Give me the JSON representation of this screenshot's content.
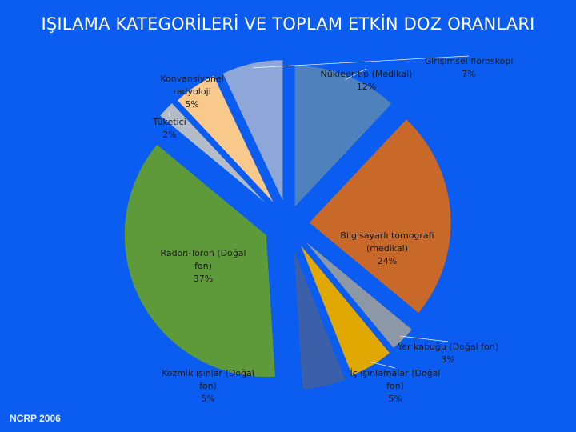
{
  "page": {
    "title": "IŞILAMA KATEGORİLERİ VE TOPLAM ETKİN DOZ ORANLARI",
    "source": "NCRP 2006"
  },
  "chart_data": {
    "type": "pie",
    "title": "IŞILAMA KATEGORİLERİ VE TOPLAM ETKİN DOZ ORANLARI",
    "slices": [
      {
        "label": "Nükleer tıp (Medikal)",
        "value": 12,
        "display": "12%",
        "color": "#4f81bd"
      },
      {
        "label": "Bilgisayarlı tomografi (medikal)",
        "value": 24,
        "display": "24%",
        "color": "#c8692a"
      },
      {
        "label": "Yer kabuğu (Doğal fon)",
        "value": 3,
        "display": "3%",
        "color": "#8c98a6"
      },
      {
        "label": "İç ışınlamalar (Doğal fon)",
        "value": 5,
        "display": "5%",
        "color": "#e0a800"
      },
      {
        "label": "Kozmik ışınlar (Doğal fon)",
        "value": 5,
        "display": "5%",
        "color": "#3b5fa8"
      },
      {
        "label": "Radon-Toron (Doğal fon)",
        "value": 37,
        "display": "37%",
        "color": "#5e9a3a"
      },
      {
        "label": "Tüketici",
        "value": 2,
        "display": "2%",
        "color": "#b4bcc8"
      },
      {
        "label": "Konvansiyonel radyoloji",
        "value": 5,
        "display": "5%",
        "color": "#f8c98a"
      },
      {
        "label": "Girişimsel floroskopi",
        "value": 7,
        "display": "7%",
        "color": "#8ea6d8"
      }
    ]
  }
}
